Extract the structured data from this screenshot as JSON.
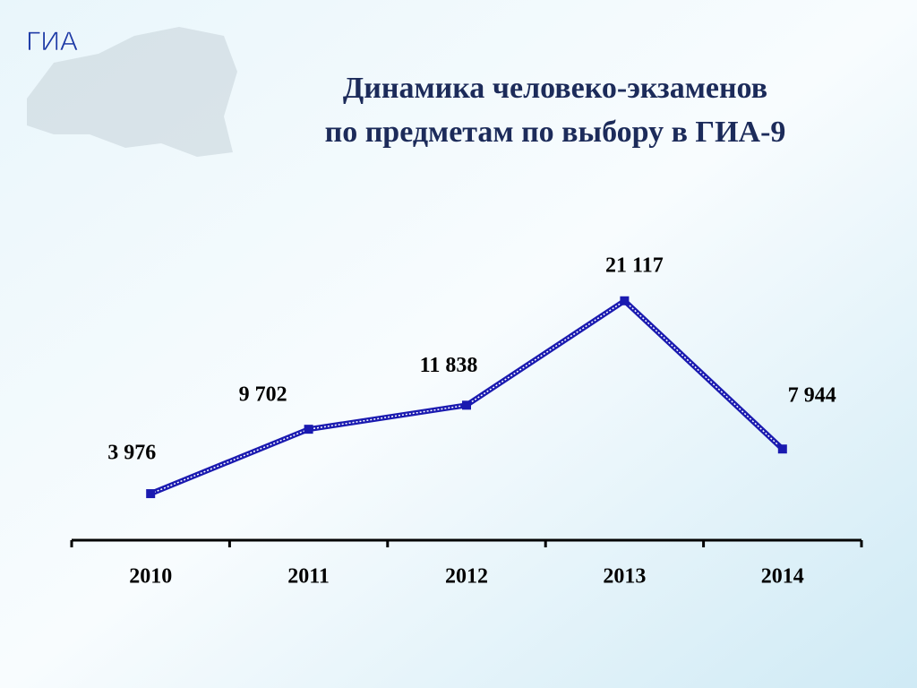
{
  "logo": "ГИА",
  "chart_data": {
    "type": "line",
    "title": [
      "Динамика человеко-экзаменов",
      "по предметам по выбору в ГИА-9"
    ],
    "categories": [
      "2010",
      "2011",
      "2012",
      "2013",
      "2014"
    ],
    "values": [
      3976,
      9702,
      11838,
      21117,
      7944
    ],
    "value_labels": [
      "3 976",
      "9 702",
      "11 838",
      "21 117",
      "7 944"
    ],
    "color": "#1a1ab0",
    "ylim": [
      0,
      25000
    ]
  }
}
